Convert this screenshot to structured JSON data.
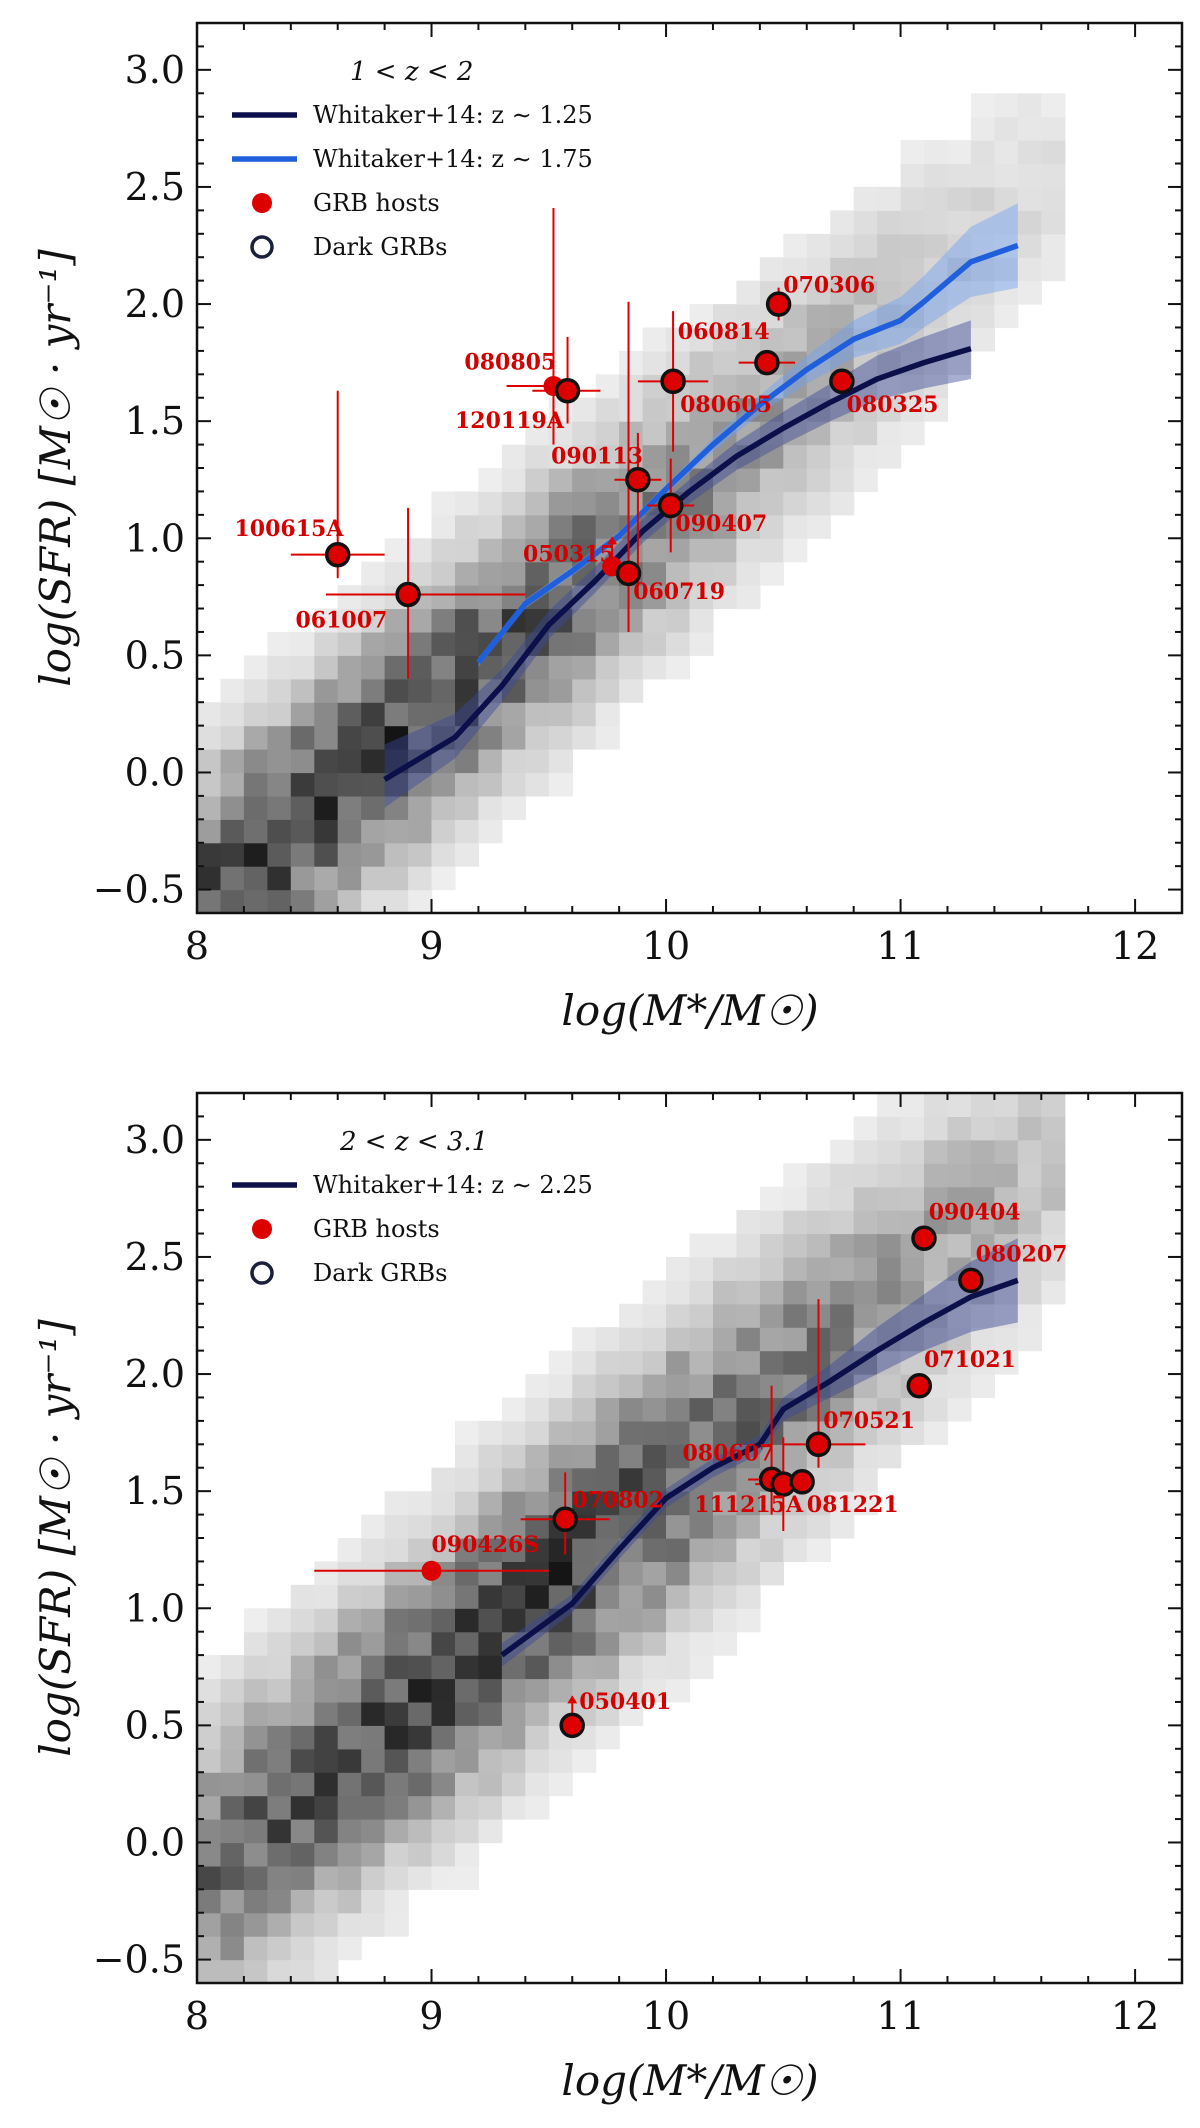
{
  "figure": {
    "panels": 2
  },
  "chart_data": [
    {
      "type": "scatter",
      "legend_title": "1 < z < 2",
      "xlabel": "log(M*/M☉)",
      "ylabel": "log(SFR) [M☉ · yr⁻¹]",
      "xlim": [
        8,
        12.2
      ],
      "ylim": [
        -0.6,
        3.2
      ],
      "xticks": [
        "8",
        "9",
        "10",
        "11",
        "12"
      ],
      "yticks": [
        "−0.5",
        "0.0",
        "0.5",
        "1.0",
        "1.5",
        "2.0",
        "2.5",
        "3.0"
      ],
      "grid": false,
      "legend_position": "top-left",
      "legend": [
        {
          "label": "Whitaker+14: z ∼ 1.25",
          "kind": "line",
          "color": "#0b0f4a"
        },
        {
          "label": "Whitaker+14: z ∼ 1.75",
          "kind": "line",
          "color": "#1f5fdc"
        },
        {
          "label": "GRB hosts",
          "kind": "filled-circle",
          "color": "#dd0000"
        },
        {
          "label": "Dark GRBs",
          "kind": "open-circle",
          "color": "#1a1f3a"
        }
      ],
      "density_background": {
        "center_x": 8.55,
        "center_y": -0.1,
        "slope": 0.85,
        "spread": 0.35
      },
      "relations": [
        {
          "name": "Whitaker+14: z ∼ 1.25",
          "color": "#0b0f4a",
          "band_color": "#3a4a9a",
          "x": [
            8.8,
            9.1,
            9.3,
            9.5,
            9.7,
            9.9,
            10.1,
            10.3,
            10.5,
            10.7,
            10.9,
            11.1,
            11.3
          ],
          "y": [
            -0.03,
            0.15,
            0.37,
            0.63,
            0.82,
            1.03,
            1.2,
            1.35,
            1.47,
            1.58,
            1.68,
            1.75,
            1.81
          ],
          "band_low": [
            -0.15,
            0.06,
            0.3,
            0.57,
            0.77,
            0.98,
            1.15,
            1.29,
            1.4,
            1.5,
            1.59,
            1.64,
            1.68
          ],
          "band_high": [
            0.12,
            0.25,
            0.44,
            0.69,
            0.88,
            1.08,
            1.25,
            1.41,
            1.54,
            1.66,
            1.78,
            1.86,
            1.93
          ]
        },
        {
          "name": "Whitaker+14: z ∼ 1.75",
          "color": "#1f5fdc",
          "band_color": "#6f9ff0",
          "x": [
            9.2,
            9.4,
            9.6,
            9.8,
            10.0,
            10.2,
            10.4,
            10.6,
            10.8,
            11.0,
            11.1,
            11.3,
            11.5
          ],
          "y": [
            0.47,
            0.72,
            0.86,
            1.01,
            1.21,
            1.4,
            1.57,
            1.72,
            1.85,
            1.93,
            2.01,
            2.18,
            2.25
          ],
          "band_low": [
            0.45,
            0.7,
            0.84,
            0.99,
            1.19,
            1.37,
            1.53,
            1.66,
            1.77,
            1.83,
            1.9,
            2.03,
            2.07
          ],
          "band_high": [
            0.49,
            0.74,
            0.88,
            1.03,
            1.23,
            1.43,
            1.61,
            1.78,
            1.93,
            2.03,
            2.12,
            2.33,
            2.43
          ]
        }
      ],
      "points": [
        {
          "label": "100615A",
          "x": 8.6,
          "y": 0.93,
          "dark": true,
          "xerr": [
            0.2,
            0.2
          ],
          "yerr": [
            0.1,
            0.7
          ],
          "lx": -0.44,
          "ly": 0.08
        },
        {
          "label": "061007",
          "x": 8.9,
          "y": 0.76,
          "dark": true,
          "xerr": [
            0.35,
            0.5
          ],
          "yerr": [
            0.36,
            0.37
          ],
          "lx": -0.48,
          "ly": -0.14
        },
        {
          "label": "080805",
          "x": 9.52,
          "y": 1.65,
          "dark": false,
          "xerr": [
            0.2,
            0.05
          ],
          "yerr": [
            0.25,
            0.76
          ],
          "lx": -0.38,
          "ly": 0.07
        },
        {
          "label": "120119A",
          "x": 9.58,
          "y": 1.63,
          "dark": true,
          "xerr": [
            0.15,
            0.14
          ],
          "yerr": [
            0.14,
            0.23
          ],
          "lx": -0.48,
          "ly": -0.16
        },
        {
          "label": "090113",
          "x": 9.88,
          "y": 1.25,
          "dark": true,
          "xerr": [
            0.1,
            0.1
          ],
          "yerr": [
            0.45,
            0.2
          ],
          "lx": -0.37,
          "ly": 0.07
        },
        {
          "label": "050315",
          "x": 9.77,
          "y": 0.88,
          "dark": false,
          "xerr": [
            0,
            0
          ],
          "yerr": [
            0,
            0
          ],
          "lx": -0.38,
          "ly": 0.02,
          "arrow": true
        },
        {
          "label": "060719",
          "x": 9.84,
          "y": 0.85,
          "dark": true,
          "xerr": [
            0,
            0
          ],
          "yerr": [
            0.25,
            1.16
          ],
          "lx": 0.02,
          "ly": -0.11
        },
        {
          "label": "090407",
          "x": 10.02,
          "y": 1.14,
          "dark": true,
          "xerr": [
            0.1,
            0.1
          ],
          "yerr": [
            0.2,
            0.2
          ],
          "lx": 0.02,
          "ly": -0.11
        },
        {
          "label": "080605",
          "x": 10.03,
          "y": 1.67,
          "dark": true,
          "xerr": [
            0.15,
            0.15
          ],
          "yerr": [
            0.3,
            0.3
          ],
          "lx": 0.03,
          "ly": -0.13
        },
        {
          "label": "060814",
          "x": 10.43,
          "y": 1.75,
          "dark": true,
          "xerr": [
            0.12,
            0.12
          ],
          "yerr": [
            0,
            0
          ],
          "lx": -0.38,
          "ly": 0.1
        },
        {
          "label": "070306",
          "x": 10.48,
          "y": 2.0,
          "dark": true,
          "xerr": [
            0,
            0
          ],
          "yerr": [
            0.07,
            0.07
          ],
          "lx": 0.02,
          "ly": 0.05
        },
        {
          "label": "080325",
          "x": 10.75,
          "y": 1.67,
          "dark": true,
          "xerr": [
            0,
            0
          ],
          "yerr": [
            0,
            0
          ],
          "lx": 0.02,
          "ly": -0.13
        }
      ]
    },
    {
      "type": "scatter",
      "legend_title": "2 < z < 3.1",
      "xlabel": "log(M*/M☉)",
      "ylabel": "log(SFR) [M☉ · yr⁻¹]",
      "xlim": [
        8,
        12.2
      ],
      "ylim": [
        -0.6,
        3.2
      ],
      "xticks": [
        "8",
        "9",
        "10",
        "11",
        "12"
      ],
      "yticks": [
        "−0.5",
        "0.0",
        "0.5",
        "1.0",
        "1.5",
        "2.0",
        "2.5",
        "3.0"
      ],
      "grid": false,
      "legend_position": "top-left",
      "legend": [
        {
          "label": "Whitaker+14: z ∼ 2.25",
          "kind": "line",
          "color": "#0b0f4a"
        },
        {
          "label": "GRB hosts",
          "kind": "filled-circle",
          "color": "#dd0000"
        },
        {
          "label": "Dark GRBs",
          "kind": "open-circle",
          "color": "#1a1f3a"
        }
      ],
      "density_background": {
        "center_x": 9.2,
        "center_y": 0.85,
        "slope": 0.85,
        "spread": 0.4
      },
      "relations": [
        {
          "name": "Whitaker+14: z ∼ 2.25",
          "color": "#0b0f4a",
          "band_color": "#3a4a9a",
          "x": [
            9.3,
            9.6,
            9.8,
            10.0,
            10.2,
            10.4,
            10.5,
            10.7,
            10.9,
            11.1,
            11.3,
            11.5
          ],
          "y": [
            0.8,
            1.02,
            1.25,
            1.47,
            1.6,
            1.7,
            1.85,
            1.97,
            2.1,
            2.22,
            2.33,
            2.4
          ],
          "band_low": [
            0.75,
            0.98,
            1.21,
            1.43,
            1.56,
            1.66,
            1.8,
            1.9,
            2.0,
            2.1,
            2.18,
            2.22
          ],
          "band_high": [
            0.85,
            1.06,
            1.29,
            1.51,
            1.64,
            1.74,
            1.9,
            2.04,
            2.2,
            2.34,
            2.48,
            2.58
          ]
        }
      ],
      "points": [
        {
          "label": "090426S",
          "x": 9.0,
          "y": 1.16,
          "dark": false,
          "xerr": [
            0.5,
            0.5
          ],
          "yerr": [
            0,
            0
          ],
          "lx": 0.0,
          "ly": 0.08
        },
        {
          "label": "070802",
          "x": 9.57,
          "y": 1.38,
          "dark": true,
          "xerr": [
            0.19,
            0.19
          ],
          "yerr": [
            0.15,
            0.2
          ],
          "lx": 0.03,
          "ly": 0.05
        },
        {
          "label": "050401",
          "x": 9.6,
          "y": 0.5,
          "dark": true,
          "xerr": [
            0,
            0
          ],
          "yerr": [
            0,
            0
          ],
          "lx": 0.03,
          "ly": 0.07,
          "arrow": true
        },
        {
          "label": "080607",
          "x": 10.45,
          "y": 1.55,
          "dark": true,
          "xerr": [
            0.1,
            0.1
          ],
          "yerr": [
            0.15,
            0.4
          ],
          "lx": -0.38,
          "ly": 0.08
        },
        {
          "label": "111215A",
          "x": 10.5,
          "y": 1.53,
          "dark": true,
          "xerr": [
            0.12,
            0.12
          ],
          "yerr": [
            0.2,
            0.2
          ],
          "lx": -0.38,
          "ly": -0.12
        },
        {
          "label": "081221",
          "x": 10.58,
          "y": 1.54,
          "dark": true,
          "xerr": [
            0,
            0
          ],
          "yerr": [
            0,
            0
          ],
          "lx": 0.02,
          "ly": -0.13
        },
        {
          "label": "070521",
          "x": 10.65,
          "y": 1.7,
          "dark": true,
          "xerr": [
            0.15,
            0.2
          ],
          "yerr": [
            0.1,
            0.62
          ],
          "lx": 0.02,
          "ly": 0.07
        },
        {
          "label": "071021",
          "x": 11.08,
          "y": 1.95,
          "dark": true,
          "xerr": [
            0,
            0
          ],
          "yerr": [
            0,
            0
          ],
          "lx": 0.02,
          "ly": 0.08
        },
        {
          "label": "090404",
          "x": 11.1,
          "y": 2.58,
          "dark": true,
          "xerr": [
            0,
            0
          ],
          "yerr": [
            0,
            0
          ],
          "lx": 0.02,
          "ly": 0.08
        },
        {
          "label": "080207",
          "x": 11.3,
          "y": 2.4,
          "dark": true,
          "xerr": [
            0,
            0
          ],
          "yerr": [
            0,
            0
          ],
          "lx": 0.02,
          "ly": 0.08
        }
      ]
    }
  ]
}
